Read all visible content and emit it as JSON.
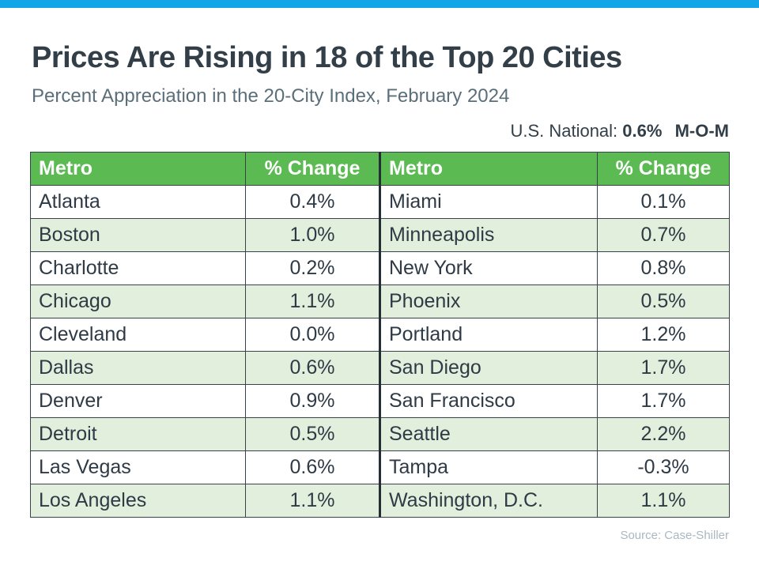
{
  "accent_color": "#12A6E9",
  "header": {
    "title": "Prices Are Rising in 18 of the Top 20 Cities",
    "subtitle": "Percent Appreciation in the 20-City Index, February 2024"
  },
  "national": {
    "label": "U.S. National:",
    "value": "0.6%",
    "period": "M-O-M"
  },
  "table": {
    "header_bg": "#5CBA53",
    "alt_row_bg": "#E2EFDC",
    "columns": [
      "Metro",
      "% Change",
      "Metro",
      "% Change"
    ],
    "rows": [
      [
        "Atlanta",
        "0.4%",
        "Miami",
        "0.1%"
      ],
      [
        "Boston",
        "1.0%",
        "Minneapolis",
        "0.7%"
      ],
      [
        "Charlotte",
        "0.2%",
        "New York",
        "0.8%"
      ],
      [
        "Chicago",
        "1.1%",
        "Phoenix",
        "0.5%"
      ],
      [
        "Cleveland",
        "0.0%",
        "Portland",
        "1.2%"
      ],
      [
        "Dallas",
        "0.6%",
        "San Diego",
        "1.7%"
      ],
      [
        "Denver",
        "0.9%",
        "San Francisco",
        "1.7%"
      ],
      [
        "Detroit",
        "0.5%",
        "Seattle",
        "2.2%"
      ],
      [
        "Las Vegas",
        "0.6%",
        "Tampa",
        "-0.3%"
      ],
      [
        "Los Angeles",
        "1.1%",
        "Washington, D.C.",
        "1.1%"
      ]
    ]
  },
  "footer": {
    "source": "Source: Case-Shiller"
  },
  "chart_data": {
    "type": "table",
    "title": "Prices Are Rising in 18 of the Top 20 Cities",
    "subtitle": "Percent Appreciation in the 20-City Index, February 2024",
    "annotation": "U.S. National: 0.6% M-O-M",
    "national_mom_pct": 0.6,
    "source": "Source: Case-Shiller",
    "columns": [
      "Metro",
      "% Change"
    ],
    "cities": [
      {
        "metro": "Atlanta",
        "pct_change": 0.4
      },
      {
        "metro": "Boston",
        "pct_change": 1.0
      },
      {
        "metro": "Charlotte",
        "pct_change": 0.2
      },
      {
        "metro": "Chicago",
        "pct_change": 1.1
      },
      {
        "metro": "Cleveland",
        "pct_change": 0.0
      },
      {
        "metro": "Dallas",
        "pct_change": 0.6
      },
      {
        "metro": "Denver",
        "pct_change": 0.9
      },
      {
        "metro": "Detroit",
        "pct_change": 0.5
      },
      {
        "metro": "Las Vegas",
        "pct_change": 0.6
      },
      {
        "metro": "Los Angeles",
        "pct_change": 1.1
      },
      {
        "metro": "Miami",
        "pct_change": 0.1
      },
      {
        "metro": "Minneapolis",
        "pct_change": 0.7
      },
      {
        "metro": "New York",
        "pct_change": 0.8
      },
      {
        "metro": "Phoenix",
        "pct_change": 0.5
      },
      {
        "metro": "Portland",
        "pct_change": 1.2
      },
      {
        "metro": "San Diego",
        "pct_change": 1.7
      },
      {
        "metro": "San Francisco",
        "pct_change": 1.7
      },
      {
        "metro": "Seattle",
        "pct_change": 2.2
      },
      {
        "metro": "Tampa",
        "pct_change": -0.3
      },
      {
        "metro": "Washington, D.C.",
        "pct_change": 1.1
      }
    ]
  }
}
